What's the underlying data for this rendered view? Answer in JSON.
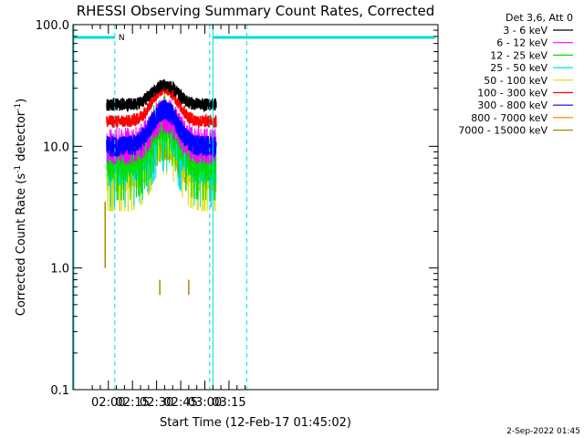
{
  "chart_data": {
    "type": "line",
    "title": "RHESSI Observing Summary Count Rates, Corrected",
    "xlabel": "Start Time (12-Feb-17 01:45:02)",
    "ylabel_main": "Corrected Count Rate (s",
    "ylabel_sup1": "-1",
    "ylabel_mid": " detector",
    "ylabel_sup2": "-1",
    "ylabel_end": ")",
    "y_scale": "log",
    "ylim": [
      0.1,
      100.0
    ],
    "xlim_minutes": [
      -22,
      205
    ],
    "x_ticks": [
      {
        "minutes": 0,
        "label": "02:00"
      },
      {
        "minutes": 15,
        "label": "02:15"
      },
      {
        "minutes": 30,
        "label": "02:30"
      },
      {
        "minutes": 45,
        "label": "02:45"
      },
      {
        "minutes": 60,
        "label": "03:00"
      },
      {
        "minutes": 75,
        "label": "03:15"
      }
    ],
    "y_ticks": [
      {
        "value": 0.1,
        "label": "0.1"
      },
      {
        "value": 1.0,
        "label": "1.0"
      },
      {
        "value": 10.0,
        "label": "10.0"
      },
      {
        "value": 100.0,
        "label": "100.0"
      }
    ],
    "legend_header": "Det 3,6, Att 0",
    "legend_position": "right",
    "series": [
      {
        "name": "3 - 6 keV",
        "color": "#000000",
        "base": 22,
        "peak": 32
      },
      {
        "name": "6 - 12 keV",
        "color": "#ff00ff",
        "base": 10,
        "peak": 18
      },
      {
        "name": "12 - 25 keV",
        "color": "#00dd00",
        "base": 8,
        "peak": 17
      },
      {
        "name": "25 - 50 keV",
        "color": "#00dddd",
        "base": 7,
        "peak": 14
      },
      {
        "name": "50 - 100 keV",
        "color": "#dddd00",
        "base": 6.5,
        "peak": 13
      },
      {
        "name": "100 - 300 keV",
        "color": "#ff0000",
        "base": 16,
        "peak": 30
      },
      {
        "name": "300 - 800 keV",
        "color": "#0000ff",
        "base": 10,
        "peak": 20
      },
      {
        "name": "800 - 7000 keV",
        "color": "#ff8800",
        "base": 6,
        "peak": 11
      },
      {
        "name": "7000 - 15000 keV",
        "color": "#aa8800",
        "base": 1.0,
        "peak": 1.0
      }
    ],
    "data_window_minutes": [
      -1,
      67
    ],
    "flare_peak_minutes": 35,
    "flag_color": "#00dddd",
    "flag_label": "N",
    "night_intervals": [
      {
        "start": -22,
        "end": 4
      },
      {
        "start": 65,
        "end": 203
      }
    ],
    "vertical_markers_minutes": [
      4,
      63,
      65,
      86
    ],
    "timestamp": "2-Sep-2022 01:45"
  }
}
